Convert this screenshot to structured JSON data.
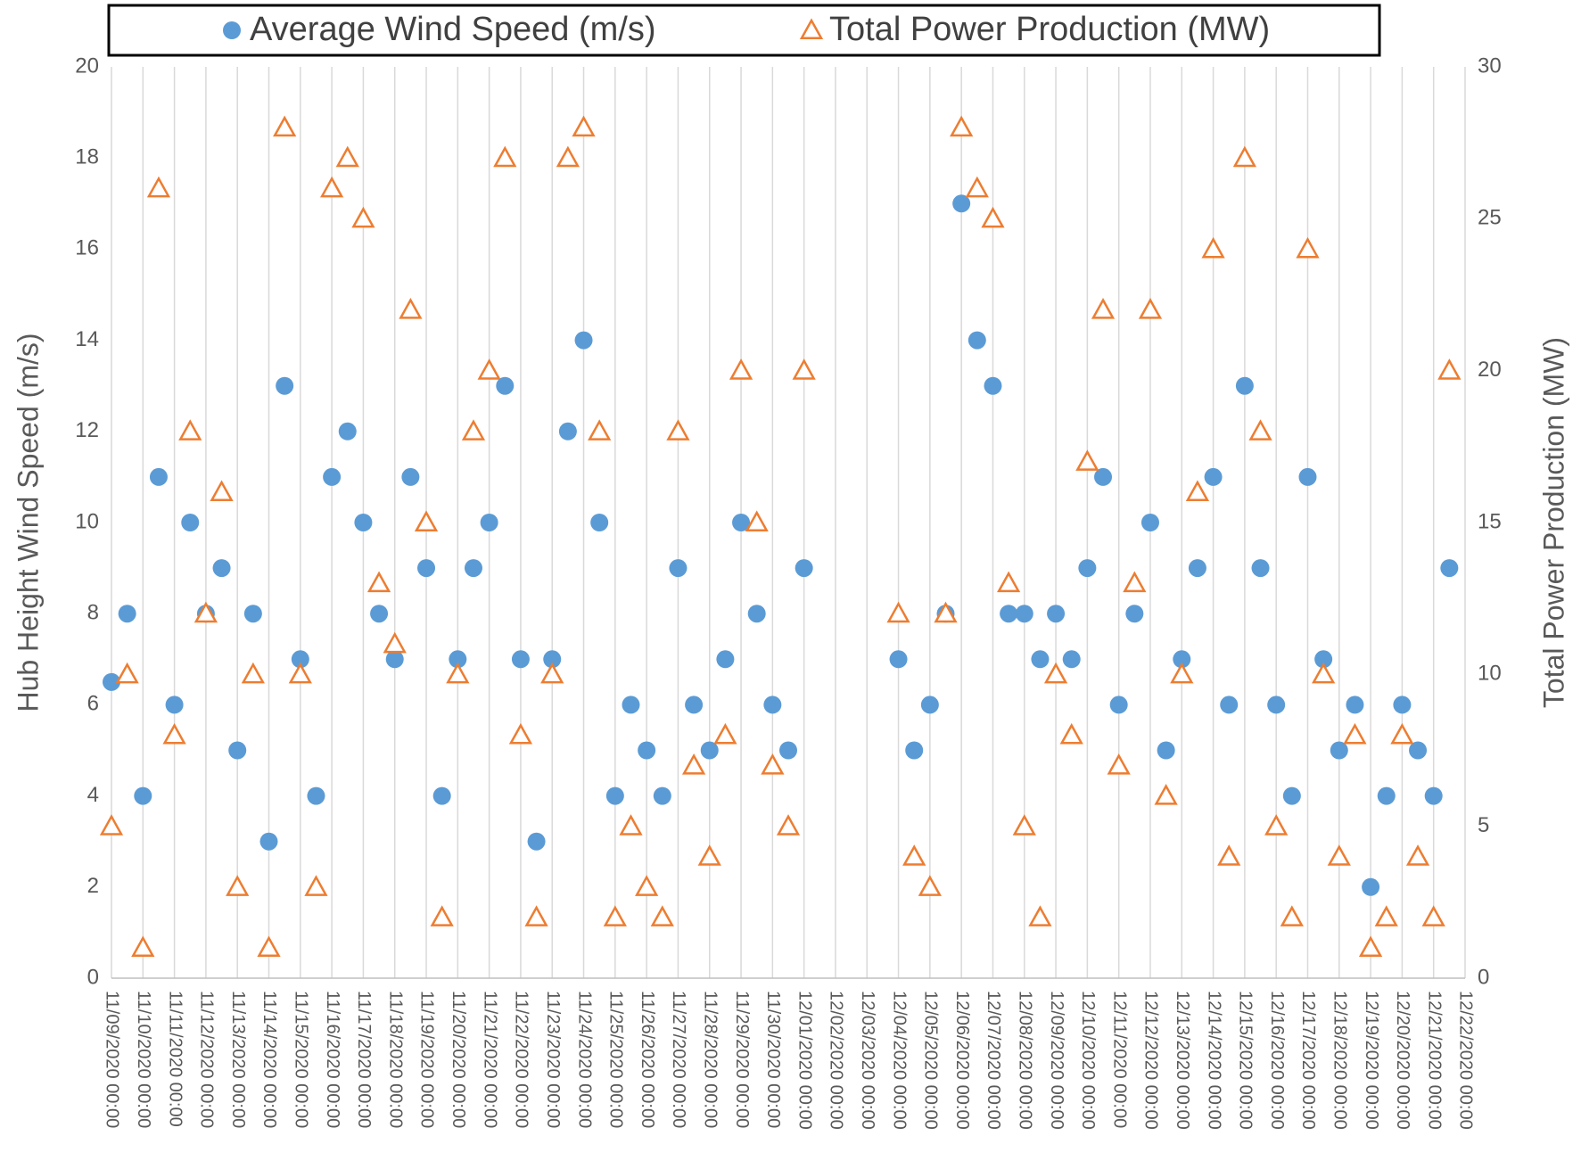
{
  "chart_data": {
    "type": "scatter",
    "x": [
      "11/09/2020 00:00",
      "11/09/2020 12:00",
      "11/10/2020 00:00",
      "11/10/2020 12:00",
      "11/11/2020 00:00",
      "11/11/2020 12:00",
      "11/12/2020 00:00",
      "11/12/2020 12:00",
      "11/13/2020 00:00",
      "11/13/2020 12:00",
      "11/14/2020 00:00",
      "11/14/2020 12:00",
      "11/15/2020 00:00",
      "11/15/2020 12:00",
      "11/16/2020 00:00",
      "11/16/2020 12:00",
      "11/17/2020 00:00",
      "11/17/2020 12:00",
      "11/18/2020 00:00",
      "11/18/2020 12:00",
      "11/19/2020 00:00",
      "11/19/2020 12:00",
      "11/20/2020 00:00",
      "11/20/2020 12:00",
      "11/21/2020 00:00",
      "11/21/2020 12:00",
      "11/22/2020 00:00",
      "11/22/2020 12:00",
      "11/23/2020 00:00",
      "11/23/2020 12:00",
      "11/24/2020 00:00",
      "11/24/2020 12:00",
      "11/25/2020 00:00",
      "11/25/2020 12:00",
      "11/26/2020 00:00",
      "11/26/2020 12:00",
      "11/27/2020 00:00",
      "11/27/2020 12:00",
      "11/28/2020 00:00",
      "11/28/2020 12:00",
      "11/29/2020 00:00",
      "11/29/2020 12:00",
      "11/30/2020 00:00",
      "11/30/2020 12:00",
      "12/01/2020 00:00",
      "12/01/2020 12:00",
      "12/02/2020 00:00",
      "12/02/2020 12:00",
      "12/03/2020 00:00",
      "12/03/2020 12:00",
      "12/04/2020 00:00",
      "12/04/2020 12:00",
      "12/05/2020 00:00",
      "12/05/2020 12:00",
      "12/06/2020 00:00",
      "12/06/2020 12:00",
      "12/07/2020 00:00",
      "12/07/2020 12:00",
      "12/08/2020 00:00",
      "12/08/2020 12:00",
      "12/09/2020 00:00",
      "12/09/2020 12:00",
      "12/10/2020 00:00",
      "12/10/2020 12:00",
      "12/11/2020 00:00",
      "12/11/2020 12:00",
      "12/12/2020 00:00",
      "12/12/2020 12:00",
      "12/13/2020 00:00",
      "12/13/2020 12:00",
      "12/14/2020 00:00",
      "12/14/2020 12:00",
      "12/15/2020 00:00",
      "12/15/2020 12:00",
      "12/16/2020 00:00",
      "12/16/2020 12:00",
      "12/17/2020 00:00",
      "12/17/2020 12:00",
      "12/18/2020 00:00",
      "12/18/2020 12:00",
      "12/19/2020 00:00",
      "12/19/2020 12:00",
      "12/20/2020 00:00",
      "12/20/2020 12:00",
      "12/21/2020 00:00",
      "12/21/2020 12:00"
    ],
    "series": [
      {
        "name": "Average Wind Speed (m/s)",
        "color": "#5b9bd5",
        "marker": "circle",
        "values": [
          6.5,
          8,
          4,
          11,
          6,
          10,
          8,
          9,
          5,
          8,
          3,
          13,
          7,
          4,
          11,
          12,
          10,
          8,
          7,
          11,
          9,
          4,
          7,
          9,
          10,
          13,
          7,
          3,
          7,
          12,
          14,
          10,
          4,
          6,
          5,
          4,
          9,
          6,
          5,
          7,
          10,
          8,
          6,
          5,
          9,
          null,
          null,
          null,
          null,
          null,
          7,
          5,
          6,
          8,
          17,
          14,
          13,
          8,
          8,
          7,
          8,
          7,
          9,
          11,
          6,
          8,
          10,
          5,
          7,
          9,
          11,
          6,
          13,
          9,
          6,
          4,
          11,
          7,
          5,
          6,
          2,
          4,
          6,
          5,
          4,
          9
        ]
      },
      {
        "name": "Total Power Production (MW)",
        "color": "#ed7d31",
        "marker": "triangle",
        "axis": "y2",
        "values": [
          5,
          10,
          1,
          26,
          8,
          18,
          12,
          16,
          3,
          10,
          1,
          28,
          10,
          3,
          26,
          27,
          25,
          13,
          11,
          22,
          15,
          2,
          10,
          18,
          20,
          27,
          8,
          2,
          10,
          27,
          28,
          18,
          2,
          5,
          3,
          2,
          18,
          7,
          4,
          8,
          20,
          15,
          7,
          5,
          20,
          null,
          null,
          null,
          null,
          null,
          12,
          4,
          3,
          12,
          28,
          26,
          25,
          13,
          5,
          2,
          10,
          8,
          17,
          22,
          7,
          13,
          22,
          6,
          10,
          16,
          24,
          4,
          27,
          18,
          5,
          2,
          24,
          10,
          4,
          8,
          1,
          2,
          8,
          4,
          2,
          20
        ]
      }
    ],
    "xlim": [
      "11/09/2020 00:00",
      "12/22/2020 00:00"
    ],
    "xticks": [
      "11/09/2020 00:00",
      "11/10/2020 00:00",
      "11/11/2020 00:00",
      "11/12/2020 00:00",
      "11/13/2020 00:00",
      "11/14/2020 00:00",
      "11/15/2020 00:00",
      "11/16/2020 00:00",
      "11/17/2020 00:00",
      "11/18/2020 00:00",
      "11/19/2020 00:00",
      "11/20/2020 00:00",
      "11/21/2020 00:00",
      "11/22/2020 00:00",
      "11/23/2020 00:00",
      "11/24/2020 00:00",
      "11/25/2020 00:00",
      "11/26/2020 00:00",
      "11/27/2020 00:00",
      "11/28/2020 00:00",
      "11/29/2020 00:00",
      "11/30/2020 00:00",
      "12/01/2020 00:00",
      "12/02/2020 00:00",
      "12/03/2020 00:00",
      "12/04/2020 00:00",
      "12/05/2020 00:00",
      "12/06/2020 00:00",
      "12/07/2020 00:00",
      "12/08/2020 00:00",
      "12/09/2020 00:00",
      "12/10/2020 00:00",
      "12/11/2020 00:00",
      "12/12/2020 00:00",
      "12/13/2020 00:00",
      "12/14/2020 00:00",
      "12/15/2020 00:00",
      "12/16/2020 00:00",
      "12/17/2020 00:00",
      "12/18/2020 00:00",
      "12/19/2020 00:00",
      "12/20/2020 00:00",
      "12/21/2020 00:00",
      "12/22/2020 00:00"
    ],
    "ylabel": "Hub Height Wind Speed (m/s)",
    "y2label": "Total Power Production (MW)",
    "ylim": [
      0,
      20
    ],
    "yticks": [
      0,
      2,
      4,
      6,
      8,
      10,
      12,
      14,
      16,
      18,
      20
    ],
    "y2lim": [
      0,
      30
    ],
    "y2ticks": [
      0,
      5,
      10,
      15,
      20,
      25,
      30
    ],
    "grid": true,
    "legend": "top"
  }
}
